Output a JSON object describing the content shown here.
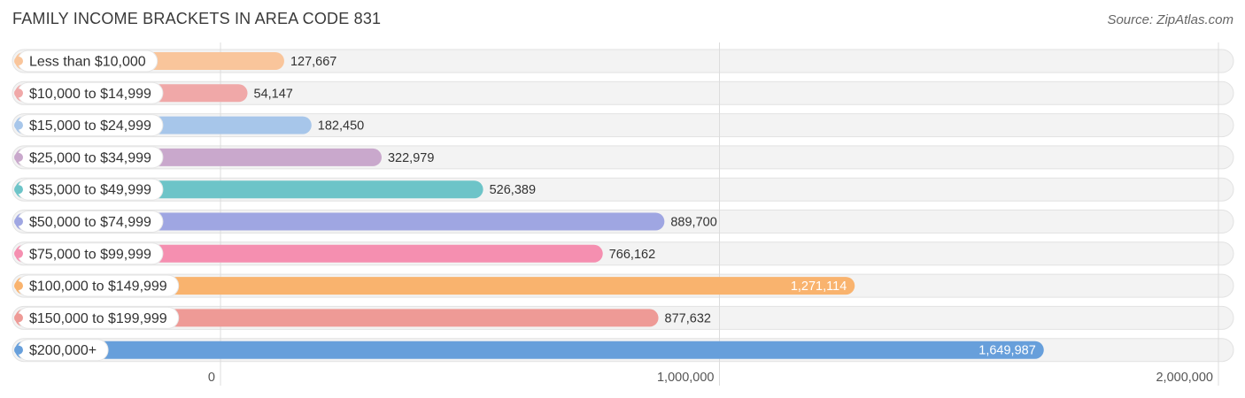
{
  "header": {
    "title": "FAMILY INCOME BRACKETS IN AREA CODE 831",
    "source": "Source: ZipAtlas.com"
  },
  "chart_data": {
    "type": "bar",
    "orientation": "horizontal",
    "title": "FAMILY INCOME BRACKETS IN AREA CODE 831",
    "xlabel": "",
    "ylabel": "",
    "xlim": [
      0,
      2000000
    ],
    "grid": true,
    "x_ticks": [
      0,
      1000000,
      2000000
    ],
    "x_tick_labels": [
      "0",
      "1,000,000",
      "2,000,000"
    ],
    "categories": [
      "Less than $10,000",
      "$10,000 to $14,999",
      "$15,000 to $24,999",
      "$25,000 to $34,999",
      "$35,000 to $49,999",
      "$50,000 to $74,999",
      "$75,000 to $99,999",
      "$100,000 to $149,999",
      "$150,000 to $199,999",
      "$200,000+"
    ],
    "values": [
      127667,
      54147,
      182450,
      322979,
      526389,
      889700,
      766162,
      1271114,
      877632,
      1649987
    ],
    "value_labels": [
      "127,667",
      "54,147",
      "182,450",
      "322,979",
      "526,389",
      "889,700",
      "766,162",
      "1,271,114",
      "877,632",
      "1,649,987"
    ],
    "colors": [
      "#f9c59b",
      "#f0a8a8",
      "#a7c6ea",
      "#c9a8cc",
      "#6dc4c8",
      "#9fa6e2",
      "#f58fb0",
      "#f9b36e",
      "#ee9a96",
      "#679fdb"
    ],
    "inside_label_color": "#ffffff",
    "outside_label_color": "#333333"
  }
}
